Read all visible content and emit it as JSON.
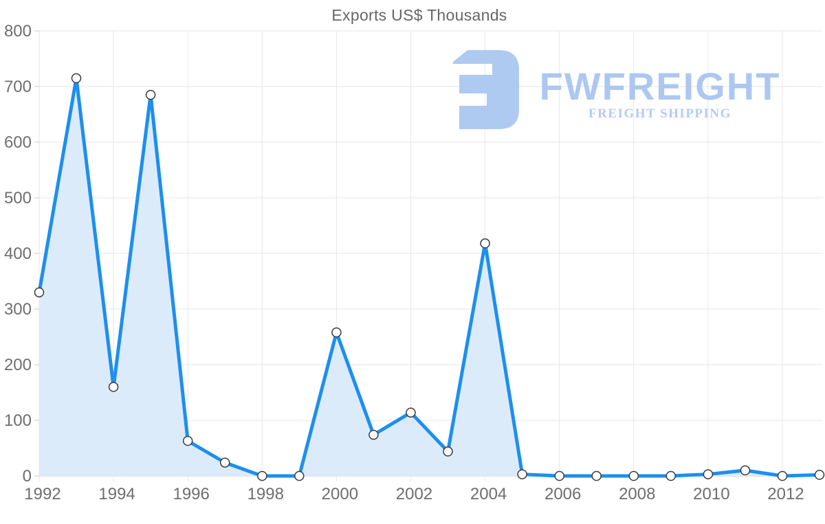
{
  "title": "Exports US$ Thousands",
  "watermark": {
    "brand": "FWFREIGHT",
    "tagline": "FREIGHT SHIPPING",
    "icon": "fwfreight-logo-icon",
    "brand_color": "#a9c5f1",
    "tagline_color": "#b0c9f3",
    "glyph_color": "#abc8f0"
  },
  "chart_data": {
    "type": "area",
    "title": "Exports US$ Thousands",
    "x": [
      1992,
      1993,
      1994,
      1995,
      1996,
      1997,
      1998,
      1999,
      2000,
      2001,
      2002,
      2003,
      2004,
      2005,
      2006,
      2007,
      2008,
      2009,
      2010,
      2011,
      2012,
      2013
    ],
    "series": [
      {
        "name": "Exports US$ Thousands",
        "values": [
          330,
          715,
          160,
          685,
          63,
          24,
          0,
          0,
          258,
          74,
          114,
          44,
          418,
          3,
          0,
          0,
          0,
          0,
          3,
          10,
          0,
          2
        ]
      }
    ],
    "xlabel": "",
    "ylabel": "",
    "ylim": [
      0,
      800
    ],
    "yticks": [
      0,
      100,
      200,
      300,
      400,
      500,
      600,
      700,
      800
    ],
    "xticks": [
      1992,
      1994,
      1996,
      1998,
      2000,
      2002,
      2004,
      2006,
      2008,
      2010,
      2012
    ],
    "grid": true,
    "legend": "none",
    "line_color": "#1d8fee",
    "fill_color": "#dcebfa",
    "marker_fill": "#ffffff",
    "marker_stroke": "#3a3a3a",
    "grid_color": "#e6e6e6",
    "axis_line_color": "#c9c9c9",
    "axis_label_color": "#6e6e6e",
    "title_color": "#666666",
    "axis_font_size": 24
  }
}
